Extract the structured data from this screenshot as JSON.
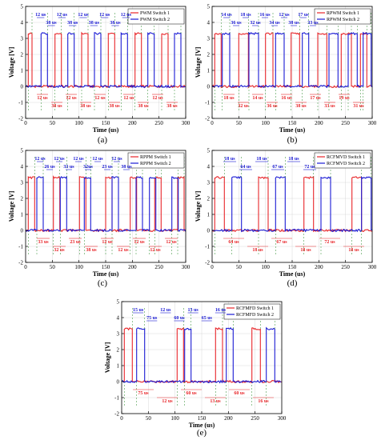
{
  "colors": {
    "s1": "#e8262a",
    "s2": "#1a1ad4",
    "axis": "#000000",
    "grid": "#d8d8d8"
  },
  "common": {
    "xlabel": "Time (us)",
    "ylabel": "Voltage [V]",
    "xlim": [
      0,
      300
    ],
    "ylim": [
      -2,
      5
    ],
    "xticks": [
      0,
      50,
      100,
      150,
      200,
      250,
      300
    ],
    "yticks": [
      -2,
      -1,
      0,
      1,
      2,
      3,
      4,
      5
    ]
  },
  "chart_data": [
    {
      "type": "line",
      "caption": "(a)",
      "series": [
        {
          "name": "PWM Switch 1",
          "high": 3.3,
          "low": 0,
          "pulses": [
            [
              5,
              12
            ],
            [
              55,
              67
            ],
            [
              105,
              117
            ],
            [
              155,
              167
            ],
            [
              205,
              217
            ],
            [
              255,
              267
            ]
          ]
        },
        {
          "name": "PWM Switch 2",
          "high": 3.3,
          "low": 0,
          "pulses": [
            [
              29,
              41
            ],
            [
              79,
              91
            ],
            [
              129,
              141
            ],
            [
              179,
              191
            ],
            [
              229,
              241
            ],
            [
              279,
              291
            ]
          ]
        }
      ],
      "top_labels": [
        "12 us",
        "38 us",
        "12 us",
        "38 us",
        "12 us",
        "38 us",
        "12 us",
        "38 us",
        "12 us"
      ],
      "bottom_labels": [
        "12 us",
        "38 us",
        "12 us",
        "38 us",
        "12 us",
        "38 us",
        "12 us",
        "38 us",
        "12 us",
        "38 us"
      ]
    },
    {
      "type": "line",
      "caption": "(b)",
      "series": [
        {
          "name": "RPWM Switch 1",
          "high": 3.3,
          "low": 0,
          "pulses": [
            [
              5,
              17
            ],
            [
              50,
              68
            ],
            [
              100,
              114
            ],
            [
              148,
              164
            ],
            [
              198,
              215
            ],
            [
              242,
              261
            ],
            [
              278,
              290
            ]
          ]
        },
        {
          "name": "RPWM Switch 2",
          "high": 3.3,
          "low": 0,
          "pulses": [
            [
              19,
              33
            ],
            [
              69,
              87
            ],
            [
              119,
              135
            ],
            [
              169,
              181
            ],
            [
              219,
              236
            ],
            [
              255,
              272
            ],
            [
              283,
              298
            ]
          ]
        }
      ],
      "top_labels": [
        "14 us",
        "36 us",
        "18 us",
        "32 us",
        "16 us",
        "34 us",
        "12 us",
        "38 us",
        "17 us",
        "33 us"
      ],
      "bottom_labels": [
        "18 us",
        "32 us",
        "14 us",
        "36 us",
        "16 us",
        "38 us",
        "17 us",
        "33 us",
        "19 us",
        "31 us"
      ]
    },
    {
      "type": "line",
      "caption": "(c)",
      "series": [
        {
          "name": "RPPM Switch 1",
          "high": 3.3,
          "low": 0,
          "pulses": [
            [
              5,
              17
            ],
            [
              52,
              64
            ],
            [
              101,
              113
            ],
            [
              150,
              162
            ],
            [
              196,
              208
            ],
            [
              242,
              254
            ],
            [
              285,
              297
            ]
          ]
        },
        {
          "name": "RPPM Switch 2",
          "high": 3.3,
          "low": 0,
          "pulses": [
            [
              21,
              33
            ],
            [
              65,
              77
            ],
            [
              110,
              122
            ],
            [
              162,
              174
            ],
            [
              207,
              219
            ],
            [
              232,
              244
            ],
            [
              274,
              286
            ]
          ]
        }
      ],
      "top_labels": [
        "12 us",
        "26 us",
        "12 us",
        "33 us",
        "12 us",
        "32us",
        "12 us",
        "23 us",
        "12 us",
        "38 us"
      ],
      "bottom_labels": [
        "33 us",
        "32 us",
        "23 us",
        "38 us",
        "12 us",
        "12 us",
        "12 us",
        "12 us",
        "12 us"
      ]
    },
    {
      "type": "line",
      "caption": "(d)",
      "series": [
        {
          "name": "RCFMVD Switch 1",
          "high": 3.3,
          "low": 0,
          "pulses": [
            [
              5,
              23
            ],
            [
              87,
              105
            ],
            [
              172,
              190
            ],
            [
              262,
              280
            ]
          ]
        },
        {
          "name": "RCFMVD Switch 2",
          "high": 3.3,
          "low": 0,
          "pulses": [
            [
              37,
              55
            ],
            [
              119,
              137
            ],
            [
              204,
              222
            ],
            [
              280,
              298
            ]
          ]
        }
      ],
      "top_labels": [
        "18 us",
        "64 us",
        "18 us",
        "67 us",
        "18 us",
        "72 us"
      ],
      "bottom_labels": [
        "64 us",
        "18 us",
        "67 us",
        "18 us",
        "72 us",
        "18 us"
      ]
    },
    {
      "type": "line",
      "caption": "(e)",
      "series": [
        {
          "name": "RCFMFD Switch 1",
          "high": 3.3,
          "low": 0,
          "pulses": [
            [
              5,
              20
            ],
            [
              104,
              116
            ],
            [
              176,
              189
            ],
            [
              244,
              260
            ]
          ]
        },
        {
          "name": "RCFMFD Switch 2",
          "high": 3.3,
          "low": 0,
          "pulses": [
            [
              28,
              43
            ],
            [
              118,
              130
            ],
            [
              196,
              209
            ],
            [
              271,
              287
            ]
          ]
        }
      ],
      "top_labels": [
        "15 us",
        "75 us",
        "12 us",
        "60 us",
        "13 us",
        "65 us",
        "16 us"
      ],
      "bottom_labels": [
        "75 us",
        "12 us",
        "60 us",
        "13 us",
        "60 us",
        "16 us"
      ]
    }
  ]
}
